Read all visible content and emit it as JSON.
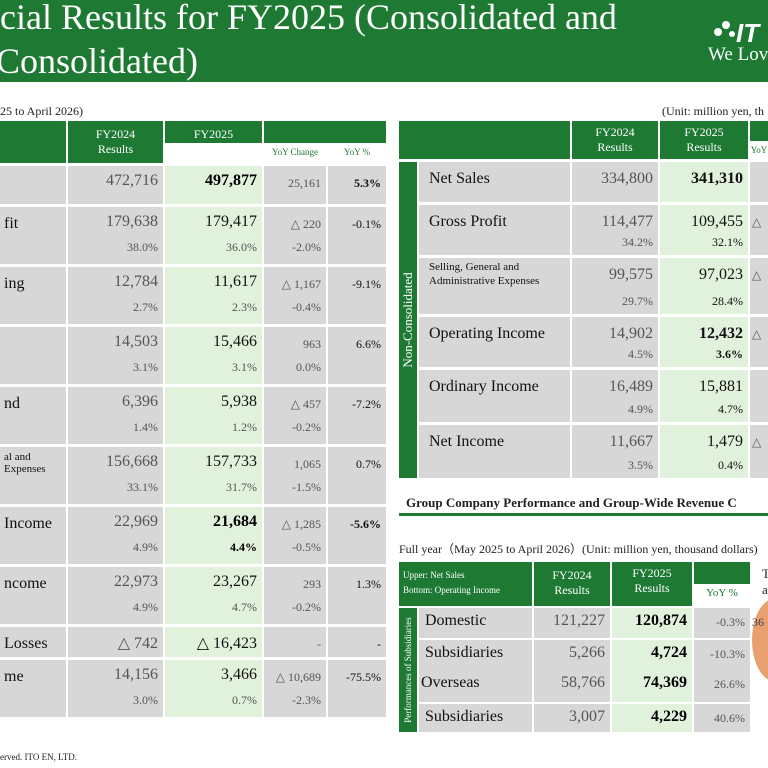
{
  "header": {
    "title_line1": "cial Results for FY2025 (Consolidated and",
    "title_line2": "Consolidated)",
    "logo_text": "IT",
    "logo_tagline": "We Lov"
  },
  "left_table": {
    "period": "25 to April 2026)",
    "col_headers": [
      "FY2024\nResults",
      "FY2025\nResults"
    ],
    "sub_headers": [
      "YoY  Change",
      "YoY %"
    ],
    "rows": [
      {
        "label": "",
        "fy2024": "472,716",
        "fy2025": "497,877",
        "yoy": "25,161",
        "yoy_pct": "5.3%",
        "hl": true
      },
      {
        "label": "fit",
        "fy2024": "179,638",
        "fy2025": "179,417",
        "yoy": "△ 220",
        "yoy_pct": "-0.1%",
        "r": [
          "38.0%",
          "36.0%",
          "-2.0%"
        ]
      },
      {
        "label": "ing",
        "fy2024": "12,784",
        "fy2025": "11,617",
        "yoy": "△ 1,167",
        "yoy_pct": "-9.1%",
        "r": [
          "2.7%",
          "2.3%",
          "-0.4%"
        ]
      },
      {
        "label": "",
        "fy2024": "14,503",
        "fy2025": "15,466",
        "yoy": "963",
        "yoy_pct": "6.6%",
        "r": [
          "3.1%",
          "3.1%",
          "0.0%"
        ]
      },
      {
        "label": "nd",
        "fy2024": "6,396",
        "fy2025": "5,938",
        "yoy": "△ 457",
        "yoy_pct": "-7.2%",
        "r": [
          "1.4%",
          "1.2%",
          "-0.2%"
        ]
      },
      {
        "label": "al and\n Expenses",
        "fy2024": "156,668",
        "fy2025": "157,733",
        "yoy": "1,065",
        "yoy_pct": "0.7%",
        "r": [
          "33.1%",
          "31.7%",
          "-1.5%"
        ]
      },
      {
        "label": "Income",
        "fy2024": "22,969",
        "fy2025": "21,684",
        "yoy": "△ 1,285",
        "yoy_pct": "-5.6%",
        "hl": true,
        "r": [
          "4.9%",
          "4.4%",
          "-0.5%"
        ]
      },
      {
        "label": "ncome",
        "fy2024": "22,973",
        "fy2025": "23,267",
        "yoy": "293",
        "yoy_pct": "1.3%",
        "r": [
          "4.9%",
          "4.7%",
          "-0.2%"
        ]
      },
      {
        "label": "Losses",
        "fy2024": "△ 742",
        "fy2025": "△ 16,423",
        "yoy": "-",
        "yoy_pct": "-"
      },
      {
        "label": "me",
        "fy2024": "14,156",
        "fy2025": "3,466",
        "yoy": "△ 10,689",
        "yoy_pct": "-75.5%",
        "r": [
          "3.0%",
          "0.7%",
          "-2.3%"
        ]
      }
    ]
  },
  "right_table": {
    "unit": "(Unit: million yen, th",
    "side_label": "Non-Consolidated",
    "col_headers": [
      "FY2024\nResults",
      "FY2025\nResults"
    ],
    "sub_header": "YoY",
    "rows": [
      {
        "label": "Net Sales",
        "fy2024": "334,800",
        "fy2025": "341,310",
        "extra": "",
        "bold": true
      },
      {
        "label": "Gross Profit",
        "fy2024": "114,477",
        "fy2025": "109,455",
        "extra": "△",
        "r": [
          "34.2%",
          "32.1%"
        ]
      },
      {
        "label": "Selling, General and\nAdministrative Expenses",
        "fy2024": "99,575",
        "fy2025": "97,023",
        "extra": "△",
        "r": [
          "29.7%",
          "28.4%"
        ]
      },
      {
        "label": "Operating Income",
        "fy2024": "14,902",
        "fy2025": "12,432",
        "extra": "△",
        "bold": true,
        "r": [
          "4.5%",
          "3.6%"
        ]
      },
      {
        "label": "Ordinary Income",
        "fy2024": "16,489",
        "fy2025": "15,881",
        "extra": "",
        "r": [
          "4.9%",
          "4.7%"
        ]
      },
      {
        "label": "Net Income",
        "fy2024": "11,667",
        "fy2025": "1,479",
        "extra": "△",
        "r": [
          "3.5%",
          "0.4%"
        ]
      }
    ]
  },
  "group": {
    "section_title": "Group Company Performance and Group-Wide Revenue C",
    "period": "Full year（May 2025 to April 2026）(Unit: million yen, thousand dollars)",
    "head_label_top": "Upper: Net Sales",
    "head_label_bottom": "Bottom: Operating Income",
    "col_headers": [
      "FY2024\nResults",
      "FY2025\nResults"
    ],
    "sub_header": "YoY %",
    "side_label": "Performances of Subsidiaries",
    "rows": [
      {
        "label": "Domestic",
        "fy2024": "121,227",
        "fy2025": "120,874",
        "yoy_pct": "-0.3%"
      },
      {
        "label": "Subsidiaries",
        "fy2024": "5,266",
        "fy2025": "4,724",
        "yoy_pct": "-10.3%"
      },
      {
        "label": "Overseas",
        "fy2024": "58,766",
        "fy2025": "74,369",
        "yoy_pct": "26.6%"
      },
      {
        "label": "Subsidiaries",
        "fy2024": "3,007",
        "fy2025": "4,229",
        "yoy_pct": "40.6%"
      }
    ],
    "side_note_t": "T",
    "side_note_a": "a",
    "side_note_num": "36"
  },
  "footer": {
    "copyright": "erved. ITO EN, LTD."
  },
  "colors": {
    "brand_green": "#1e7a33",
    "highlight_green": "#e0f2dc",
    "cell_gray": "#d7d7d7"
  }
}
